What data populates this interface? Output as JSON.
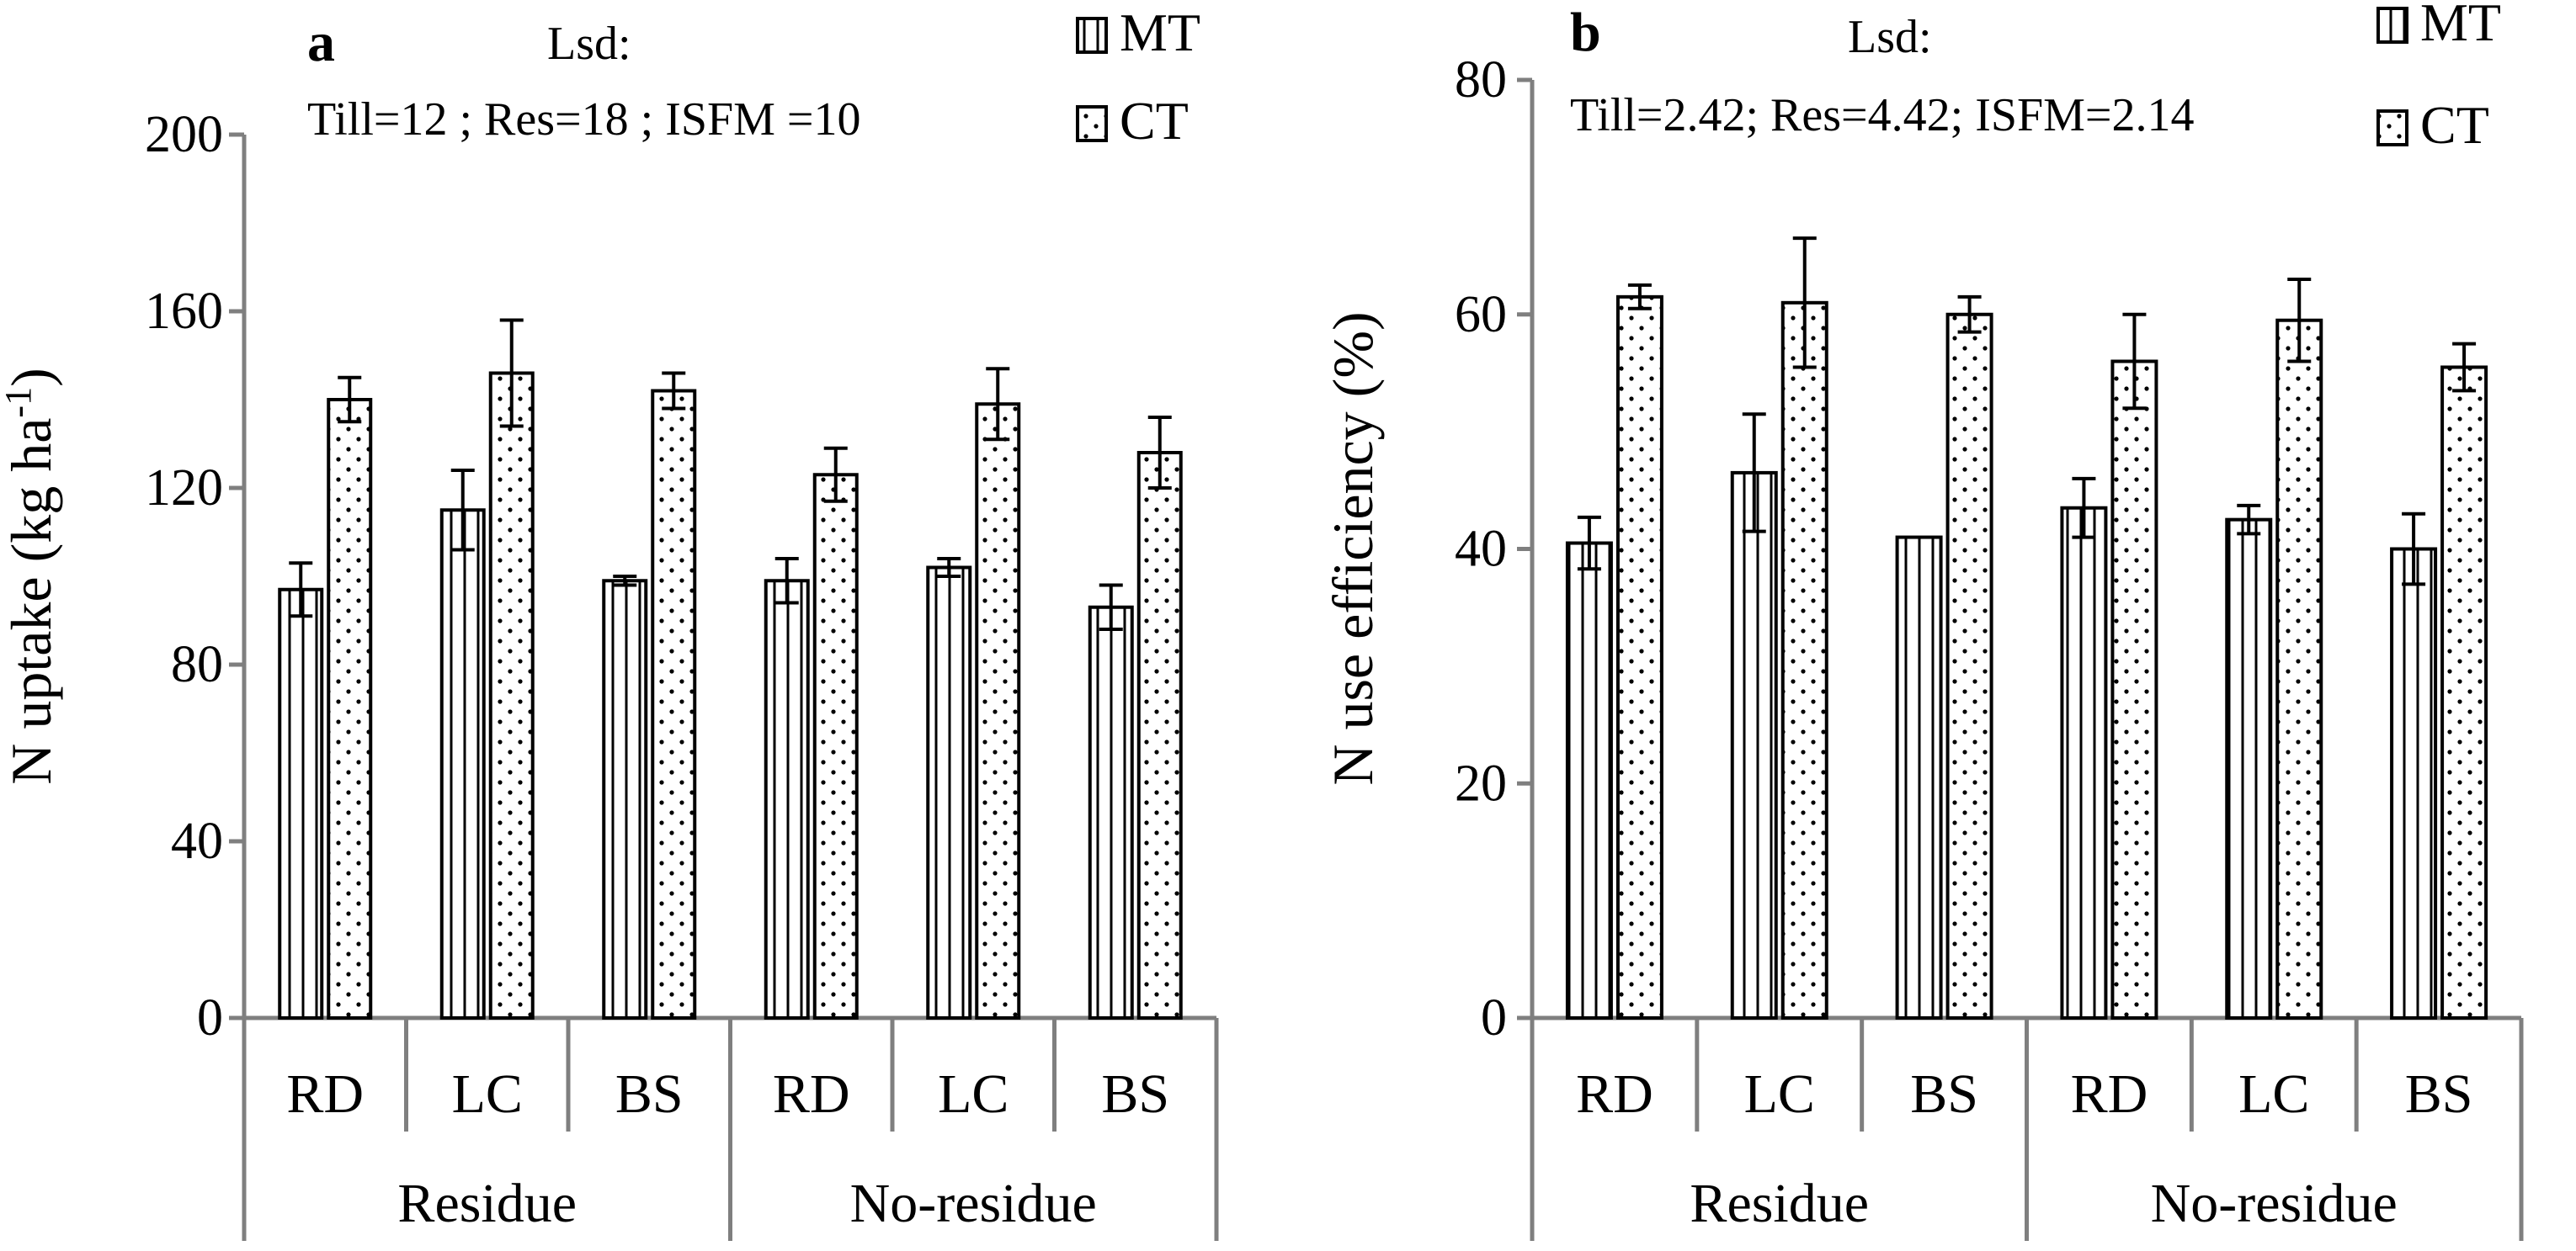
{
  "chart_data": [
    {
      "type": "bar",
      "panel_label": "a",
      "lsd_title": "Lsd:",
      "lsd_text": "Till=12  ; Res=18 ; ISFM =10",
      "ylabel": "N uptake (kg ha",
      "ylabel_sup": "-1",
      "ylabel_close": ")",
      "ylim": [
        0,
        200
      ],
      "yticks": [
        "0",
        "40",
        "80",
        "120",
        "160",
        "200"
      ],
      "ytick_values": [
        0,
        40,
        80,
        120,
        160,
        200
      ],
      "categories": [
        "RD",
        "LC",
        "BS",
        "RD",
        "LC",
        "BS"
      ],
      "groups": [
        {
          "label": "Residue",
          "span": 3
        },
        {
          "label": "No-residue",
          "span": 3
        }
      ],
      "legend": [
        "MT",
        "CT"
      ],
      "series": [
        {
          "name": "MT",
          "values": [
            97,
            115,
            99,
            99,
            102,
            93
          ],
          "errors": [
            6,
            9,
            1,
            5,
            2,
            5
          ]
        },
        {
          "name": "CT",
          "values": [
            140,
            146,
            142,
            123,
            139,
            128
          ],
          "errors": [
            5,
            12,
            4,
            6,
            8,
            8
          ]
        }
      ]
    },
    {
      "type": "bar",
      "panel_label": "b",
      "lsd_title": "Lsd:",
      "lsd_text": "Till=2.42;   Res=4.42; ISFM=2.14",
      "ylabel": "N use efficiency  (%)",
      "ylim": [
        0,
        80
      ],
      "yticks": [
        "0",
        "20",
        "40",
        "60",
        "80"
      ],
      "ytick_values": [
        0,
        20,
        40,
        60,
        80
      ],
      "categories": [
        "RD",
        "LC",
        "BS",
        "RD",
        "LC",
        "BS"
      ],
      "groups": [
        {
          "label": "Residue",
          "span": 3
        },
        {
          "label": "No-residue",
          "span": 3
        }
      ],
      "legend": [
        "MT",
        "CT"
      ],
      "series": [
        {
          "name": "MT",
          "values": [
            40.5,
            46.5,
            41,
            43.5,
            42.5,
            40
          ],
          "errors": [
            2.2,
            5,
            0,
            2.5,
            1.2,
            3
          ]
        },
        {
          "name": "CT",
          "values": [
            61.5,
            61,
            60,
            56,
            59.5,
            55.5
          ],
          "errors": [
            1,
            5.5,
            1.5,
            4,
            3.5,
            2
          ]
        }
      ]
    }
  ]
}
